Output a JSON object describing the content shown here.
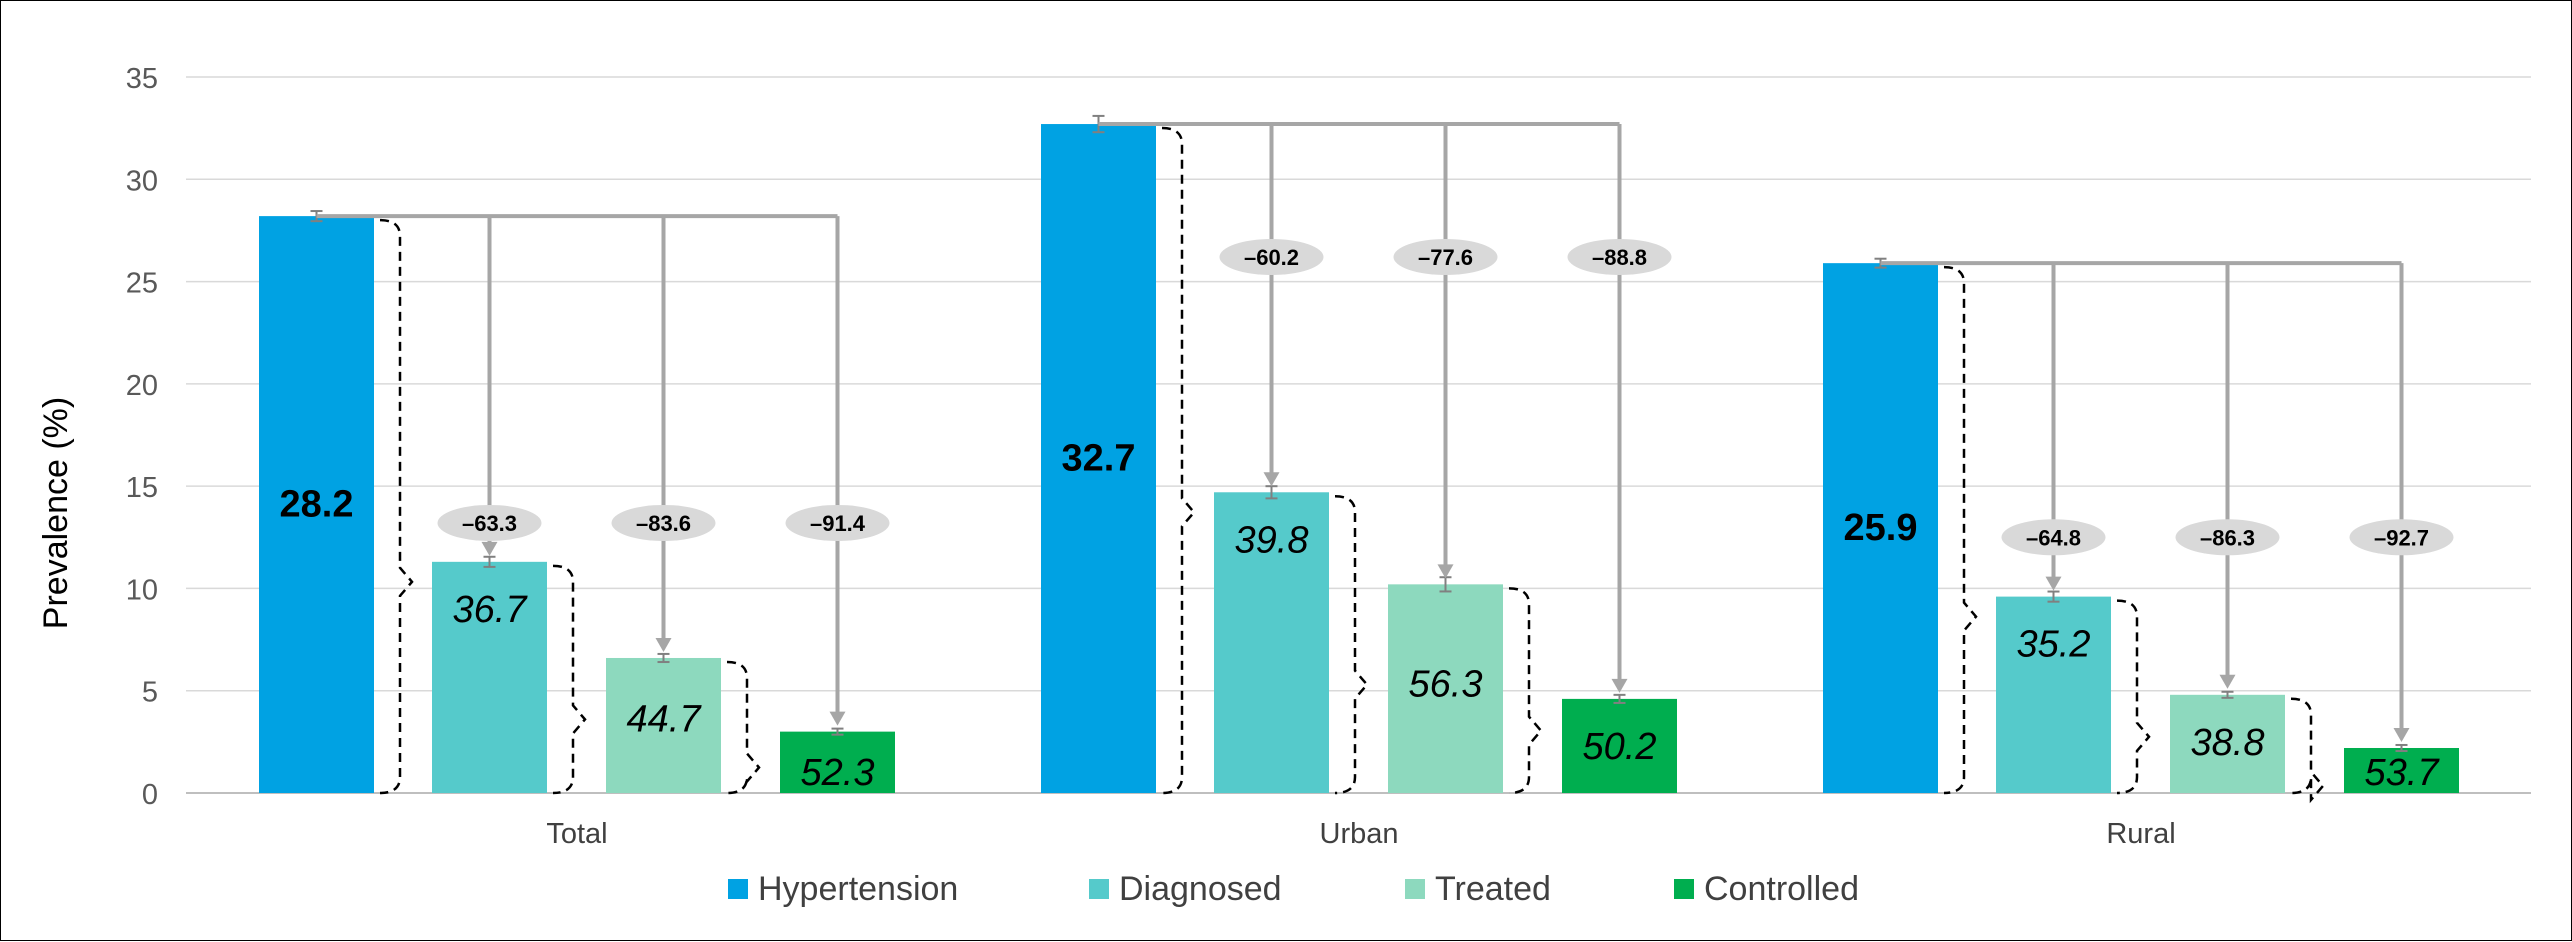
{
  "chart_data": {
    "type": "bar",
    "categories": [
      "Total",
      "Urban",
      "Rural"
    ],
    "ylabel": "Prevalence (%)",
    "xlabel": "",
    "title": "",
    "ylim": [
      0,
      35
    ],
    "yticks": [
      0,
      5,
      10,
      15,
      20,
      25,
      30,
      35
    ],
    "grid": true,
    "legend_position": "bottom",
    "series": [
      {
        "name": "Hypertension",
        "color": "#00A2E3",
        "values": [
          28.2,
          32.7,
          25.9
        ],
        "errors": [
          0.15,
          0.3,
          0.12
        ]
      },
      {
        "name": "Diagnosed",
        "color": "#55CACB",
        "values": [
          11.3,
          14.7,
          9.6
        ],
        "errors": [
          0.15,
          0.2,
          0.15
        ]
      },
      {
        "name": "Treated",
        "color": "#8DD9BE",
        "values": [
          6.6,
          10.2,
          4.8
        ],
        "errors": [
          0.1,
          0.25,
          0.05
        ]
      },
      {
        "name": "Controlled",
        "color": "#00AE4F",
        "values": [
          3.0,
          4.6,
          2.2
        ],
        "errors": [
          0.05,
          0.1,
          0.05
        ]
      }
    ],
    "bar_labels": [
      [
        "28.2",
        "32.7",
        "25.9"
      ],
      [
        "36.7",
        "39.8",
        "35.2"
      ],
      [
        "44.7",
        "56.3",
        "38.8"
      ],
      [
        "52.3",
        "50.2",
        "53.7"
      ]
    ],
    "reduction_labels": [
      [
        "–63.3",
        "–83.6",
        "–91.4"
      ],
      [
        "–60.2",
        "–77.6",
        "–88.8"
      ],
      [
        "–64.8",
        "–86.3",
        "–92.7"
      ]
    ],
    "reduction_label_y": [
      13.2,
      26.2,
      12.5
    ]
  }
}
